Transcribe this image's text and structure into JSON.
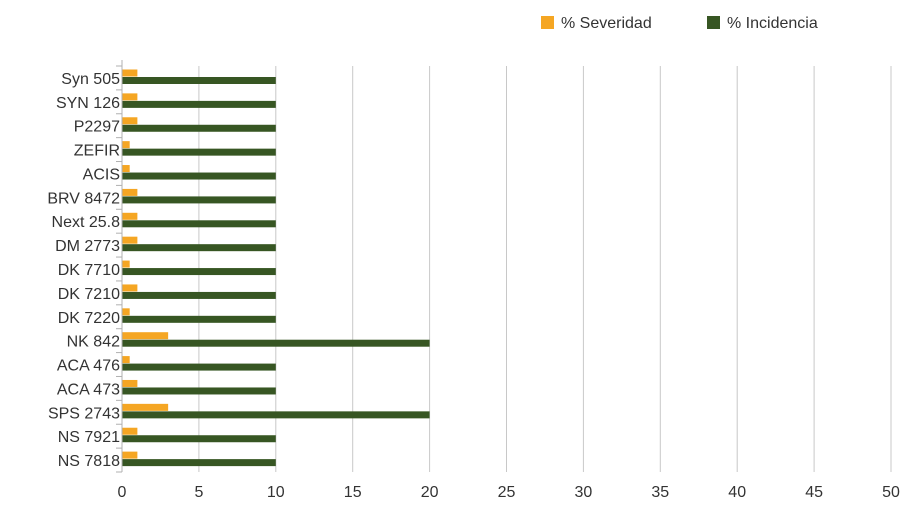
{
  "chart_data": {
    "type": "bar",
    "orientation": "horizontal",
    "categories": [
      "Syn 505",
      "SYN 126",
      "P2297",
      "ZEFIR",
      "ACIS",
      "BRV 8472",
      "Next 25.8",
      "DM 2773",
      "DK 7710",
      "DK 7210",
      "DK 7220",
      "NK 842",
      "ACA 476",
      "ACA 473",
      "SPS 2743",
      "NS 7921",
      "NS 7818"
    ],
    "series": [
      {
        "name": "% Severidad",
        "color": "#f5a623",
        "values": [
          1,
          1,
          1,
          0.5,
          0.5,
          1,
          1,
          1,
          0.5,
          1,
          0.5,
          3,
          0.5,
          1,
          3,
          1,
          1
        ]
      },
      {
        "name": "% Incidencia",
        "color": "#375623",
        "values": [
          10,
          10,
          10,
          10,
          10,
          10,
          10,
          10,
          10,
          10,
          10,
          20,
          10,
          10,
          20,
          10,
          10
        ]
      }
    ],
    "xlim": [
      0,
      50
    ],
    "xticks": [
      "0",
      "5",
      "10",
      "15",
      "20",
      "25",
      "30",
      "35",
      "40",
      "45",
      "50"
    ],
    "grid": true,
    "legend_position": "top-right"
  }
}
